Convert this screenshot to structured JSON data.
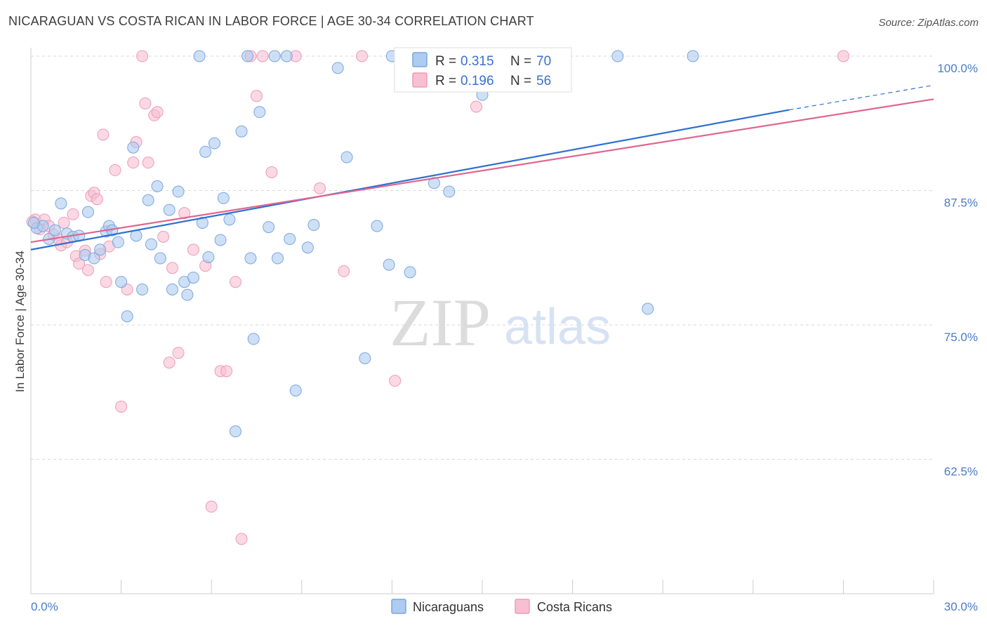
{
  "title": "NICARAGUAN VS COSTA RICAN IN LABOR FORCE | AGE 30-34 CORRELATION CHART",
  "source": "Source: ZipAtlas.com",
  "watermark": {
    "zip": "ZIP",
    "atlas": "atlas"
  },
  "legend": {
    "r_label": "R =",
    "n_label": "N =",
    "rows": [
      {
        "series": "Nicaraguans",
        "r": "0.315",
        "n": "70"
      },
      {
        "series": "Costa Ricans",
        "r": "0.196",
        "n": "56"
      }
    ]
  },
  "colors": {
    "nicaraguans_fill": "#aecbf0",
    "nicaraguans_stroke": "#7aa6de",
    "nicaraguans_line": "#2e6fd0",
    "costaricans_fill": "#f7c0d2",
    "costaricans_stroke": "#ef9ab7",
    "costaricans_line": "#e0668f",
    "tick_label": "#4a7cc7",
    "grid": "#d8d8d8"
  },
  "chart_data": {
    "type": "scatter",
    "xlabel": "",
    "ylabel": "In Labor Force | Age 30-34",
    "xlim": [
      0,
      30
    ],
    "ylim": [
      50,
      100
    ],
    "x_tick_labels": [
      "0.0%",
      "30.0%"
    ],
    "y_ticks": [
      62.5,
      75.0,
      87.5,
      100.0
    ],
    "y_tick_labels": [
      "62.5%",
      "75.0%",
      "87.5%",
      "100.0%"
    ],
    "grid": "horizontal dashed",
    "legend_position": "top-center",
    "series": [
      {
        "name": "Nicaraguans",
        "trend": {
          "x": [
            0,
            25.2
          ],
          "y": [
            82.0,
            95.0
          ],
          "extended_to": [
            30,
            97.3
          ]
        },
        "points": [
          [
            0.2,
            84.0
          ],
          [
            0.4,
            84.2
          ],
          [
            0.6,
            83.0
          ],
          [
            0.8,
            83.8
          ],
          [
            1.0,
            86.3
          ],
          [
            1.2,
            83.5
          ],
          [
            1.4,
            83.2
          ],
          [
            1.6,
            83.3
          ],
          [
            1.8,
            81.5
          ],
          [
            1.9,
            85.5
          ],
          [
            2.1,
            81.2
          ],
          [
            2.3,
            82.0
          ],
          [
            2.5,
            83.7
          ],
          [
            2.6,
            84.2
          ],
          [
            2.7,
            83.8
          ],
          [
            2.9,
            82.7
          ],
          [
            3.0,
            79.0
          ],
          [
            3.2,
            75.8
          ],
          [
            3.4,
            91.5
          ],
          [
            3.5,
            83.3
          ],
          [
            3.7,
            78.3
          ],
          [
            3.9,
            86.6
          ],
          [
            4.0,
            82.5
          ],
          [
            4.2,
            87.9
          ],
          [
            4.3,
            81.2
          ],
          [
            4.6,
            85.7
          ],
          [
            4.7,
            78.3
          ],
          [
            4.9,
            87.4
          ],
          [
            5.1,
            79.0
          ],
          [
            5.2,
            77.8
          ],
          [
            5.4,
            79.4
          ],
          [
            5.6,
            100.0
          ],
          [
            5.7,
            84.5
          ],
          [
            5.8,
            91.1
          ],
          [
            5.9,
            81.3
          ],
          [
            6.1,
            91.9
          ],
          [
            6.3,
            82.9
          ],
          [
            6.4,
            86.8
          ],
          [
            6.6,
            84.8
          ],
          [
            6.8,
            65.1
          ],
          [
            7.0,
            93.0
          ],
          [
            7.2,
            100.0
          ],
          [
            7.3,
            81.2
          ],
          [
            7.4,
            73.7
          ],
          [
            7.6,
            94.8
          ],
          [
            7.9,
            84.1
          ],
          [
            8.1,
            100.0
          ],
          [
            8.2,
            81.2
          ],
          [
            8.5,
            100.0
          ],
          [
            8.6,
            83.0
          ],
          [
            8.8,
            68.9
          ],
          [
            9.2,
            82.2
          ],
          [
            9.4,
            84.3
          ],
          [
            10.2,
            98.9
          ],
          [
            10.5,
            90.6
          ],
          [
            11.1,
            71.9
          ],
          [
            11.5,
            84.2
          ],
          [
            11.9,
            80.6
          ],
          [
            12.0,
            100.0
          ],
          [
            12.6,
            79.9
          ],
          [
            13.4,
            88.2
          ],
          [
            13.6,
            100.0
          ],
          [
            13.9,
            87.4
          ],
          [
            14.3,
            100.0
          ],
          [
            15.0,
            96.4
          ],
          [
            16.2,
            100.0
          ],
          [
            19.5,
            100.0
          ],
          [
            20.5,
            76.5
          ],
          [
            22.0,
            100.0
          ],
          [
            0.1,
            84.5
          ]
        ]
      },
      {
        "name": "Costa Ricans",
        "trend": {
          "x": [
            0,
            30
          ],
          "y": [
            82.7,
            96.0
          ]
        },
        "points": [
          [
            0.15,
            84.8
          ],
          [
            0.3,
            83.9
          ],
          [
            0.45,
            84.8
          ],
          [
            0.6,
            84.2
          ],
          [
            0.75,
            83.4
          ],
          [
            0.9,
            83.0
          ],
          [
            1.0,
            82.4
          ],
          [
            1.1,
            84.5
          ],
          [
            1.2,
            82.7
          ],
          [
            1.4,
            85.3
          ],
          [
            1.5,
            81.4
          ],
          [
            1.6,
            80.7
          ],
          [
            1.8,
            81.9
          ],
          [
            1.9,
            80.1
          ],
          [
            2.0,
            87.0
          ],
          [
            2.1,
            87.3
          ],
          [
            2.2,
            86.7
          ],
          [
            2.3,
            81.6
          ],
          [
            2.4,
            92.7
          ],
          [
            2.5,
            79.0
          ],
          [
            2.6,
            82.3
          ],
          [
            2.8,
            89.4
          ],
          [
            3.0,
            67.4
          ],
          [
            3.2,
            78.3
          ],
          [
            3.4,
            90.1
          ],
          [
            3.5,
            92.0
          ],
          [
            3.7,
            100.0
          ],
          [
            3.8,
            95.6
          ],
          [
            3.9,
            90.1
          ],
          [
            4.1,
            94.5
          ],
          [
            4.2,
            94.8
          ],
          [
            4.4,
            83.2
          ],
          [
            4.6,
            71.5
          ],
          [
            4.7,
            80.3
          ],
          [
            4.9,
            72.4
          ],
          [
            5.1,
            85.4
          ],
          [
            5.4,
            82.0
          ],
          [
            5.8,
            80.5
          ],
          [
            6.0,
            58.1
          ],
          [
            6.3,
            70.7
          ],
          [
            6.5,
            70.7
          ],
          [
            6.8,
            79.0
          ],
          [
            7.0,
            55.1
          ],
          [
            7.3,
            100.0
          ],
          [
            7.5,
            96.3
          ],
          [
            7.7,
            100.0
          ],
          [
            8.0,
            89.2
          ],
          [
            8.8,
            100.0
          ],
          [
            9.6,
            87.7
          ],
          [
            10.4,
            80.0
          ],
          [
            11.0,
            100.0
          ],
          [
            12.1,
            69.8
          ],
          [
            13.8,
            100.0
          ],
          [
            14.8,
            95.3
          ],
          [
            27.0,
            100.0
          ],
          [
            0.05,
            84.6
          ]
        ]
      }
    ]
  }
}
